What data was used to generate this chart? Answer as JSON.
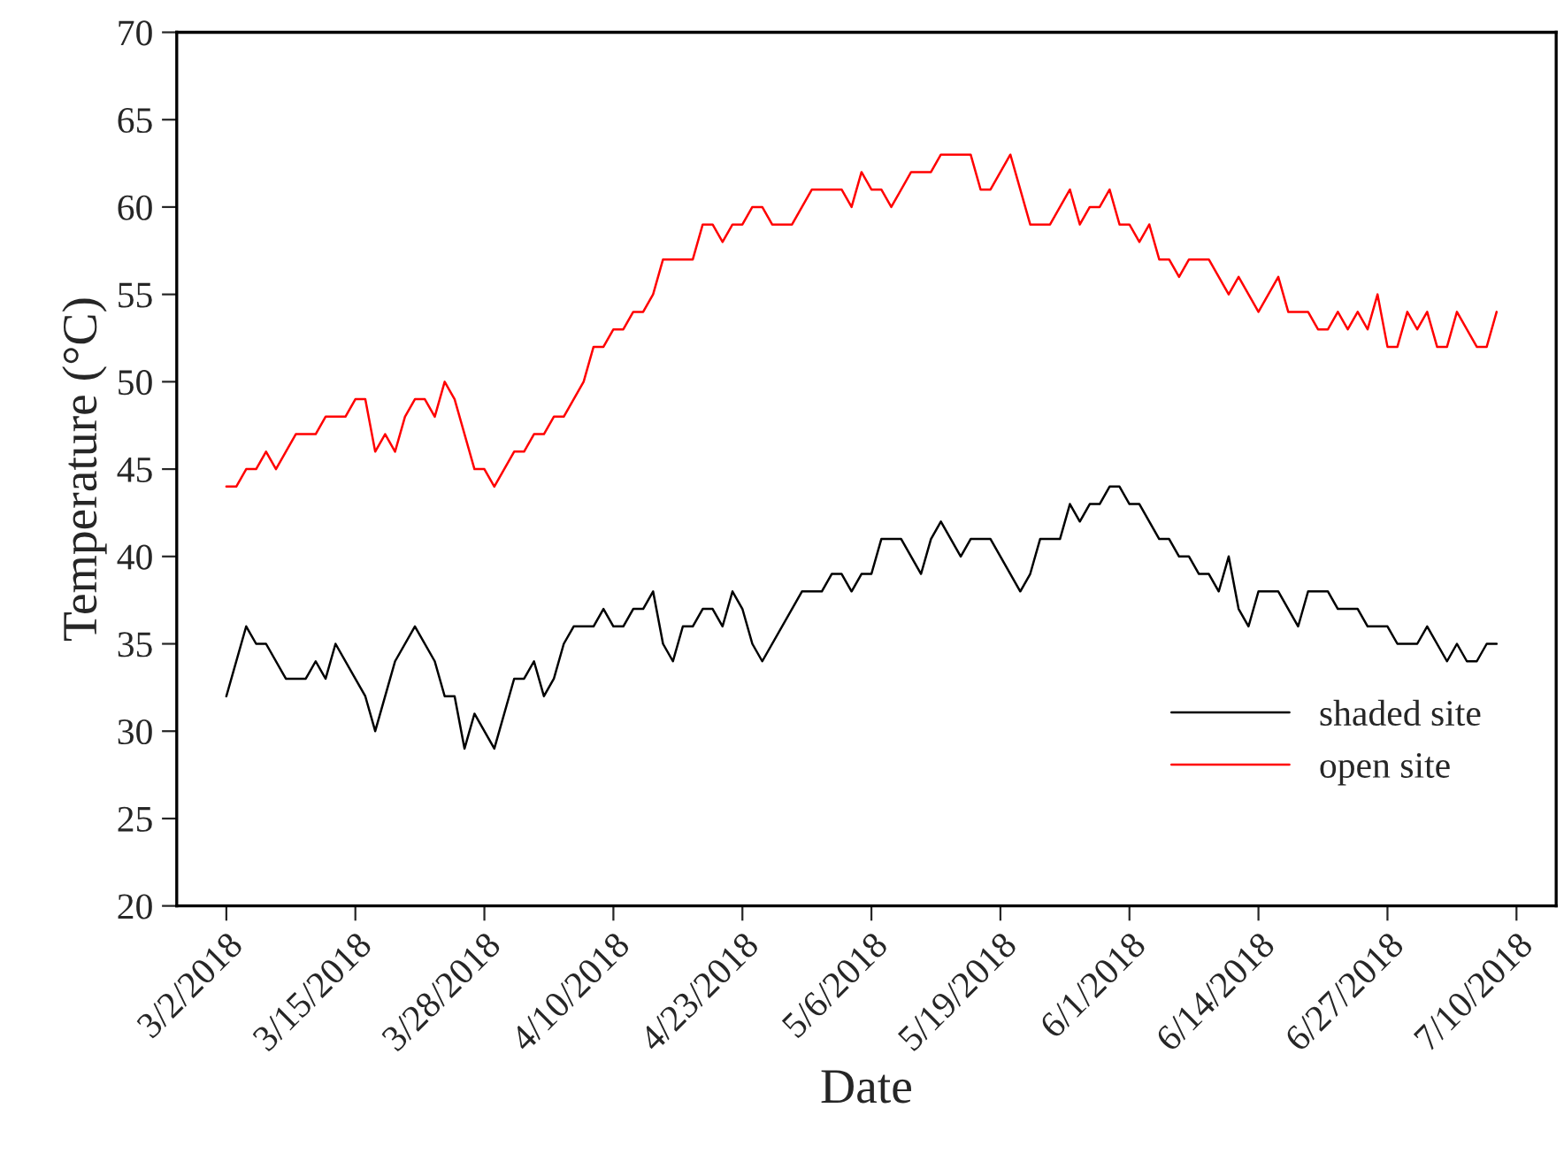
{
  "chart_data": {
    "type": "line",
    "xlabel": "Date",
    "ylabel": "Temperature (°C)",
    "xlim": [
      "2018-02-25",
      "2018-07-14"
    ],
    "xticks": [
      {
        "value": "2018-03-02",
        "label": "3/2/2018"
      },
      {
        "value": "2018-03-15",
        "label": "3/15/2018"
      },
      {
        "value": "2018-03-28",
        "label": "3/28/2018"
      },
      {
        "value": "2018-04-10",
        "label": "4/10/2018"
      },
      {
        "value": "2018-04-23",
        "label": "4/23/2018"
      },
      {
        "value": "2018-05-06",
        "label": "5/6/2018"
      },
      {
        "value": "2018-05-19",
        "label": "5/19/2018"
      },
      {
        "value": "2018-06-01",
        "label": "6/1/2018"
      },
      {
        "value": "2018-06-14",
        "label": "6/14/2018"
      },
      {
        "value": "2018-06-27",
        "label": "6/27/2018"
      },
      {
        "value": "2018-07-10",
        "label": "7/10/2018"
      }
    ],
    "ylim": [
      20,
      70
    ],
    "yticks": [
      20,
      25,
      30,
      35,
      40,
      45,
      50,
      55,
      60,
      65,
      70
    ],
    "grid": false,
    "legend": "bottom right",
    "marker": "none",
    "line_style": "solid",
    "series": [
      {
        "name": "shaded site",
        "color": "#000000",
        "x": [
          "2018-03-02",
          "2018-03-04",
          "2018-03-05",
          "2018-03-06",
          "2018-03-08",
          "2018-03-10",
          "2018-03-11",
          "2018-03-12",
          "2018-03-13",
          "2018-03-16",
          "2018-03-17",
          "2018-03-19",
          "2018-03-21",
          "2018-03-23",
          "2018-03-24",
          "2018-03-25",
          "2018-03-26",
          "2018-03-27",
          "2018-03-29",
          "2018-03-31",
          "2018-04-01",
          "2018-04-02",
          "2018-04-03",
          "2018-04-04",
          "2018-04-05",
          "2018-04-06",
          "2018-04-08",
          "2018-04-09",
          "2018-04-10",
          "2018-04-11",
          "2018-04-12",
          "2018-04-13",
          "2018-04-14",
          "2018-04-15",
          "2018-04-16",
          "2018-04-17",
          "2018-04-18",
          "2018-04-19",
          "2018-04-20",
          "2018-04-21",
          "2018-04-22",
          "2018-04-23",
          "2018-04-24",
          "2018-04-25",
          "2018-04-29",
          "2018-05-01",
          "2018-05-02",
          "2018-05-03",
          "2018-05-04",
          "2018-05-05",
          "2018-05-06",
          "2018-05-07",
          "2018-05-09",
          "2018-05-11",
          "2018-05-12",
          "2018-05-13",
          "2018-05-15",
          "2018-05-16",
          "2018-05-18",
          "2018-05-21",
          "2018-05-22",
          "2018-05-23",
          "2018-05-25",
          "2018-05-26",
          "2018-05-27",
          "2018-05-28",
          "2018-05-29",
          "2018-05-30",
          "2018-05-31",
          "2018-06-01",
          "2018-06-02",
          "2018-06-04",
          "2018-06-05",
          "2018-06-06",
          "2018-06-07",
          "2018-06-08",
          "2018-06-09",
          "2018-06-10",
          "2018-06-11",
          "2018-06-12",
          "2018-06-13",
          "2018-06-14",
          "2018-06-16",
          "2018-06-18",
          "2018-06-19",
          "2018-06-21",
          "2018-06-22",
          "2018-06-24",
          "2018-06-25",
          "2018-06-27",
          "2018-06-28",
          "2018-06-30",
          "2018-07-01",
          "2018-07-03",
          "2018-07-04",
          "2018-07-05",
          "2018-07-06",
          "2018-07-07",
          "2018-07-08"
        ],
        "values": [
          32,
          36,
          35,
          35,
          33,
          33,
          34,
          33,
          35,
          32,
          30,
          34,
          36,
          34,
          32,
          32,
          29,
          31,
          29,
          33,
          33,
          34,
          32,
          33,
          35,
          36,
          36,
          37,
          36,
          36,
          37,
          37,
          38,
          35,
          34,
          36,
          36,
          37,
          37,
          36,
          38,
          37,
          35,
          34,
          38,
          38,
          39,
          39,
          38,
          39,
          39,
          41,
          41,
          39,
          41,
          42,
          40,
          41,
          41,
          38,
          39,
          41,
          41,
          43,
          42,
          43,
          43,
          44,
          44,
          43,
          43,
          41,
          41,
          40,
          40,
          39,
          39,
          38,
          40,
          37,
          36,
          38,
          38,
          36,
          38,
          38,
          37,
          37,
          36,
          36,
          35,
          35,
          36,
          34,
          35,
          34,
          34,
          35,
          35
        ]
      },
      {
        "name": "open site",
        "color": "#ff0000",
        "x": [
          "2018-03-02",
          "2018-03-03",
          "2018-03-04",
          "2018-03-05",
          "2018-03-06",
          "2018-03-07",
          "2018-03-09",
          "2018-03-11",
          "2018-03-12",
          "2018-03-14",
          "2018-03-15",
          "2018-03-16",
          "2018-03-17",
          "2018-03-18",
          "2018-03-19",
          "2018-03-20",
          "2018-03-21",
          "2018-03-22",
          "2018-03-23",
          "2018-03-24",
          "2018-03-25",
          "2018-03-27",
          "2018-03-28",
          "2018-03-29",
          "2018-03-31",
          "2018-04-01",
          "2018-04-02",
          "2018-04-03",
          "2018-04-04",
          "2018-04-05",
          "2018-04-07",
          "2018-04-08",
          "2018-04-09",
          "2018-04-10",
          "2018-04-11",
          "2018-04-12",
          "2018-04-13",
          "2018-04-14",
          "2018-04-15",
          "2018-04-18",
          "2018-04-19",
          "2018-04-20",
          "2018-04-21",
          "2018-04-22",
          "2018-04-23",
          "2018-04-24",
          "2018-04-25",
          "2018-04-26",
          "2018-04-28",
          "2018-04-30",
          "2018-05-03",
          "2018-05-04",
          "2018-05-05",
          "2018-05-06",
          "2018-05-07",
          "2018-05-08",
          "2018-05-10",
          "2018-05-12",
          "2018-05-13",
          "2018-05-16",
          "2018-05-17",
          "2018-05-18",
          "2018-05-20",
          "2018-05-22",
          "2018-05-24",
          "2018-05-26",
          "2018-05-27",
          "2018-05-28",
          "2018-05-29",
          "2018-05-30",
          "2018-05-31",
          "2018-06-01",
          "2018-06-02",
          "2018-06-03",
          "2018-06-04",
          "2018-06-05",
          "2018-06-06",
          "2018-06-07",
          "2018-06-09",
          "2018-06-11",
          "2018-06-12",
          "2018-06-14",
          "2018-06-16",
          "2018-06-17",
          "2018-06-19",
          "2018-06-20",
          "2018-06-21",
          "2018-06-22",
          "2018-06-23",
          "2018-06-24",
          "2018-06-25",
          "2018-06-26",
          "2018-06-27",
          "2018-06-28",
          "2018-06-29",
          "2018-06-30",
          "2018-07-01",
          "2018-07-02",
          "2018-07-03",
          "2018-07-04",
          "2018-07-06",
          "2018-07-07",
          "2018-07-08"
        ],
        "values": [
          44,
          44,
          45,
          45,
          46,
          45,
          47,
          47,
          48,
          48,
          49,
          49,
          46,
          47,
          46,
          48,
          49,
          49,
          48,
          50,
          49,
          45,
          45,
          44,
          46,
          46,
          47,
          47,
          48,
          48,
          50,
          52,
          52,
          53,
          53,
          54,
          54,
          55,
          57,
          57,
          59,
          59,
          58,
          59,
          59,
          60,
          60,
          59,
          59,
          61,
          61,
          60,
          62,
          61,
          61,
          60,
          62,
          62,
          63,
          63,
          61,
          61,
          63,
          59,
          59,
          61,
          59,
          60,
          60,
          61,
          59,
          59,
          58,
          59,
          57,
          57,
          56,
          57,
          57,
          55,
          56,
          54,
          56,
          54,
          54,
          53,
          53,
          54,
          53,
          54,
          53,
          55,
          52,
          52,
          54,
          53,
          54,
          52,
          52,
          54,
          52,
          52,
          54
        ]
      }
    ]
  }
}
